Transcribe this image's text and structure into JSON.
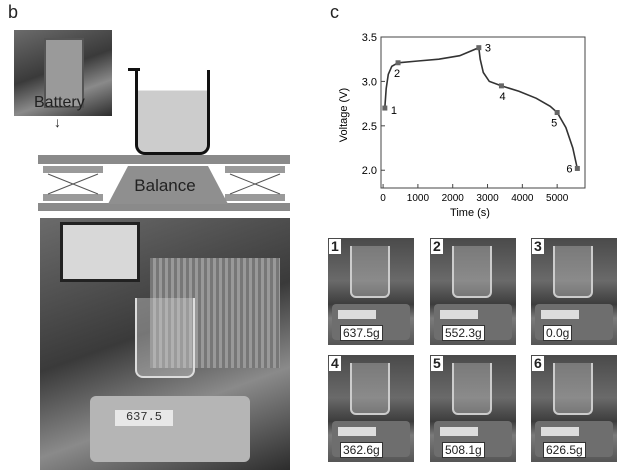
{
  "panels": {
    "b": "b",
    "c": "c"
  },
  "schematic": {
    "battery_label": "Battery",
    "balance_label": "Balance"
  },
  "photo": {
    "display_reading": "637.5"
  },
  "chart_data": {
    "type": "line",
    "title": "",
    "xlabel": "Time (s)",
    "ylabel": "Voltage (V)",
    "xlim": [
      -60,
      5800
    ],
    "ylim": [
      1.8,
      3.5
    ],
    "xticks": [
      0,
      1000,
      2000,
      3000,
      4000,
      5000
    ],
    "yticks": [
      2.0,
      2.5,
      3.0,
      3.5
    ],
    "yticklabels": [
      "2.0",
      "2.5",
      "3.0",
      "3.5"
    ],
    "curve": {
      "x": [
        50,
        90,
        150,
        250,
        430,
        1000,
        1600,
        2200,
        2750,
        2790,
        2880,
        3050,
        3400,
        3900,
        4400,
        4800,
        5000,
        5250,
        5450,
        5580
      ],
      "y": [
        2.7,
        2.92,
        3.08,
        3.17,
        3.21,
        3.23,
        3.25,
        3.29,
        3.38,
        3.25,
        3.1,
        3.0,
        2.95,
        2.89,
        2.81,
        2.72,
        2.65,
        2.48,
        2.25,
        2.02
      ]
    },
    "markers": [
      {
        "label": "1",
        "x": 50,
        "y": 2.7
      },
      {
        "label": "2",
        "x": 430,
        "y": 3.21
      },
      {
        "label": "3",
        "x": 2750,
        "y": 3.38
      },
      {
        "label": "4",
        "x": 3400,
        "y": 2.95
      },
      {
        "label": "5",
        "x": 5000,
        "y": 2.65
      },
      {
        "label": "6",
        "x": 5580,
        "y": 2.02
      }
    ]
  },
  "snapshots": [
    {
      "label": "1",
      "mass": "637.5g"
    },
    {
      "label": "2",
      "mass": "552.3g"
    },
    {
      "label": "3",
      "mass": "0.0g"
    },
    {
      "label": "4",
      "mass": "362.6g"
    },
    {
      "label": "5",
      "mass": "508.1g"
    },
    {
      "label": "6",
      "mass": "626.5g"
    }
  ]
}
